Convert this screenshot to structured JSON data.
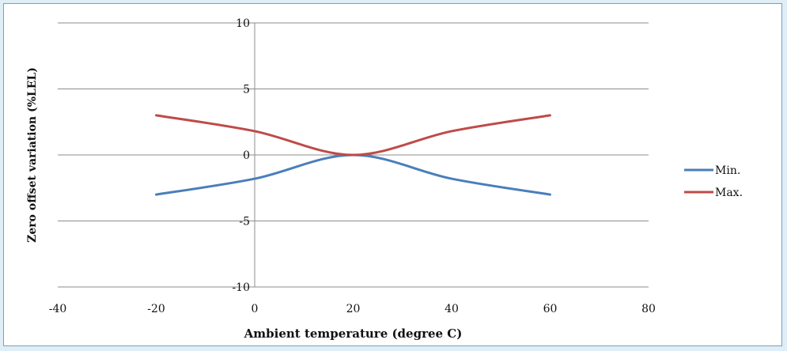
{
  "chart_data": {
    "type": "line",
    "title": "",
    "xlabel": "Ambient temperature (degree C)",
    "ylabel": "Zero offset variation (%LEL)",
    "xlim": [
      -40,
      80
    ],
    "ylim": [
      -10,
      10
    ],
    "x_ticks": [
      "-40",
      "-20",
      "0",
      "20",
      "40",
      "60",
      "80"
    ],
    "y_ticks": [
      "10",
      "5",
      "0",
      "-5",
      "-10"
    ],
    "grid": true,
    "legend_position": "right",
    "x": [
      -20,
      0,
      20,
      40,
      60
    ],
    "series": [
      {
        "name": "Min.",
        "values": [
          -3,
          -1.8,
          0,
          -1.8,
          -3
        ],
        "color": "#4a7ebb"
      },
      {
        "name": "Max.",
        "values": [
          3,
          1.8,
          0,
          1.8,
          3
        ],
        "color": "#be4b48"
      }
    ]
  }
}
